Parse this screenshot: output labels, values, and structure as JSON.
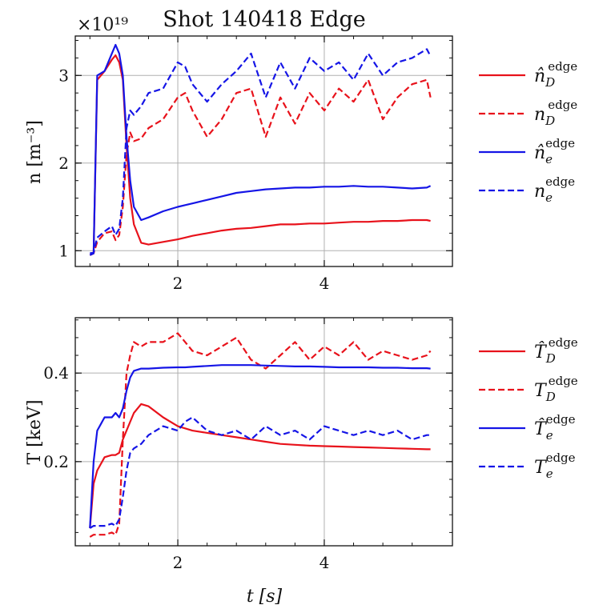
{
  "chart_data": {
    "type": "line",
    "title": "Shot 140418 Edge",
    "xlabel": "t [s]",
    "x": [
      0.8,
      0.85,
      0.9,
      1.0,
      1.1,
      1.15,
      1.2,
      1.25,
      1.3,
      1.35,
      1.4,
      1.5,
      1.6,
      1.8,
      2.0,
      2.1,
      2.2,
      2.4,
      2.6,
      2.8,
      3.0,
      3.2,
      3.4,
      3.6,
      3.8,
      4.0,
      4.2,
      4.4,
      4.6,
      4.8,
      5.0,
      5.2,
      5.4,
      5.45
    ],
    "panels": [
      {
        "name": "density",
        "ylabel": "n [m⁻³]",
        "multiplier": "×10¹⁹",
        "ylim": [
          0.82,
          3.45
        ],
        "yticks": [
          1,
          2,
          3
        ],
        "series": [
          {
            "name": "n̂_D^edge",
            "legend": {
              "sym": "n̂",
              "sub": "D",
              "sup": "edge"
            },
            "color": "#e8121b",
            "dash": false,
            "values": [
              0.95,
              0.97,
              2.95,
              3.05,
              3.18,
              3.23,
              3.15,
              2.95,
              2.2,
              1.6,
              1.3,
              1.09,
              1.07,
              1.1,
              1.13,
              1.15,
              1.17,
              1.2,
              1.23,
              1.25,
              1.26,
              1.28,
              1.3,
              1.3,
              1.31,
              1.31,
              1.32,
              1.33,
              1.33,
              1.34,
              1.34,
              1.35,
              1.35,
              1.34
            ]
          },
          {
            "name": "n_D^edge",
            "legend": {
              "sym": "n",
              "sub": "D",
              "sup": "edge"
            },
            "color": "#e8121b",
            "dash": true,
            "values": [
              0.95,
              0.97,
              1.1,
              1.2,
              1.22,
              1.12,
              1.18,
              1.5,
              2.1,
              2.35,
              2.25,
              2.28,
              2.4,
              2.5,
              2.75,
              2.8,
              2.6,
              2.3,
              2.5,
              2.8,
              2.85,
              2.3,
              2.75,
              2.45,
              2.8,
              2.6,
              2.85,
              2.7,
              2.95,
              2.5,
              2.75,
              2.9,
              2.95,
              2.75
            ]
          },
          {
            "name": "n̂_e^edge",
            "legend": {
              "sym": "n̂",
              "sub": "e",
              "sup": "edge"
            },
            "color": "#1515e6",
            "dash": false,
            "values": [
              0.95,
              0.97,
              3.0,
              3.05,
              3.25,
              3.35,
              3.25,
              3.0,
              2.3,
              1.8,
              1.5,
              1.35,
              1.38,
              1.45,
              1.5,
              1.52,
              1.54,
              1.58,
              1.62,
              1.66,
              1.68,
              1.7,
              1.71,
              1.72,
              1.72,
              1.73,
              1.73,
              1.74,
              1.73,
              1.73,
              1.72,
              1.71,
              1.72,
              1.74
            ]
          },
          {
            "name": "n_e^edge",
            "legend": {
              "sym": "n",
              "sub": "e",
              "sup": "edge"
            },
            "color": "#1515e6",
            "dash": true,
            "values": [
              0.97,
              0.98,
              1.15,
              1.22,
              1.28,
              1.18,
              1.25,
              1.6,
              2.4,
              2.6,
              2.55,
              2.65,
              2.8,
              2.85,
              3.15,
              3.1,
              2.9,
              2.7,
              2.9,
              3.05,
              3.25,
              2.75,
              3.15,
              2.85,
              3.2,
              3.05,
              3.15,
              2.95,
              3.25,
              3.0,
              3.15,
              3.2,
              3.3,
              3.22
            ]
          }
        ]
      },
      {
        "name": "temperature",
        "ylabel": "T [keV]",
        "multiplier": "",
        "ylim": [
          0.01,
          0.525
        ],
        "yticks": [
          0.2,
          0.4
        ],
        "series": [
          {
            "name": "T̂_D^edge",
            "legend": {
              "sym": "T̂",
              "sub": "D",
              "sup": "edge"
            },
            "color": "#e8121b",
            "dash": false,
            "values": [
              0.05,
              0.15,
              0.18,
              0.21,
              0.215,
              0.215,
              0.22,
              0.25,
              0.27,
              0.29,
              0.31,
              0.33,
              0.325,
              0.3,
              0.28,
              0.275,
              0.27,
              0.265,
              0.26,
              0.255,
              0.25,
              0.245,
              0.24,
              0.238,
              0.236,
              0.235,
              0.234,
              0.233,
              0.232,
              0.231,
              0.23,
              0.229,
              0.228,
              0.228
            ]
          },
          {
            "name": "T_D^edge",
            "legend": {
              "sym": "T",
              "sub": "D",
              "sup": "edge"
            },
            "color": "#e8121b",
            "dash": true,
            "values": [
              0.03,
              0.035,
              0.035,
              0.035,
              0.04,
              0.035,
              0.06,
              0.25,
              0.4,
              0.44,
              0.47,
              0.46,
              0.47,
              0.47,
              0.49,
              0.47,
              0.45,
              0.44,
              0.46,
              0.48,
              0.43,
              0.41,
              0.44,
              0.47,
              0.43,
              0.46,
              0.44,
              0.47,
              0.43,
              0.45,
              0.44,
              0.43,
              0.44,
              0.45
            ]
          },
          {
            "name": "T̂_e^edge",
            "legend": {
              "sym": "T̂",
              "sub": "e",
              "sup": "edge"
            },
            "color": "#1515e6",
            "dash": false,
            "values": [
              0.05,
              0.2,
              0.27,
              0.3,
              0.3,
              0.31,
              0.3,
              0.32,
              0.36,
              0.39,
              0.405,
              0.41,
              0.41,
              0.412,
              0.413,
              0.413,
              0.414,
              0.416,
              0.418,
              0.418,
              0.418,
              0.417,
              0.416,
              0.415,
              0.415,
              0.414,
              0.413,
              0.413,
              0.413,
              0.412,
              0.412,
              0.411,
              0.411,
              0.41
            ]
          },
          {
            "name": "T_e^edge",
            "legend": {
              "sym": "T",
              "sub": "e",
              "sup": "edge"
            },
            "color": "#1515e6",
            "dash": true,
            "values": [
              0.05,
              0.055,
              0.055,
              0.055,
              0.06,
              0.055,
              0.07,
              0.12,
              0.18,
              0.22,
              0.23,
              0.24,
              0.26,
              0.28,
              0.27,
              0.29,
              0.3,
              0.27,
              0.26,
              0.27,
              0.25,
              0.28,
              0.26,
              0.27,
              0.25,
              0.28,
              0.27,
              0.26,
              0.27,
              0.26,
              0.27,
              0.25,
              0.26,
              0.26
            ]
          }
        ]
      }
    ],
    "xticks": [
      2,
      4
    ],
    "xlim": [
      0.6,
      5.75
    ],
    "grid": true,
    "legend_position": "right"
  }
}
